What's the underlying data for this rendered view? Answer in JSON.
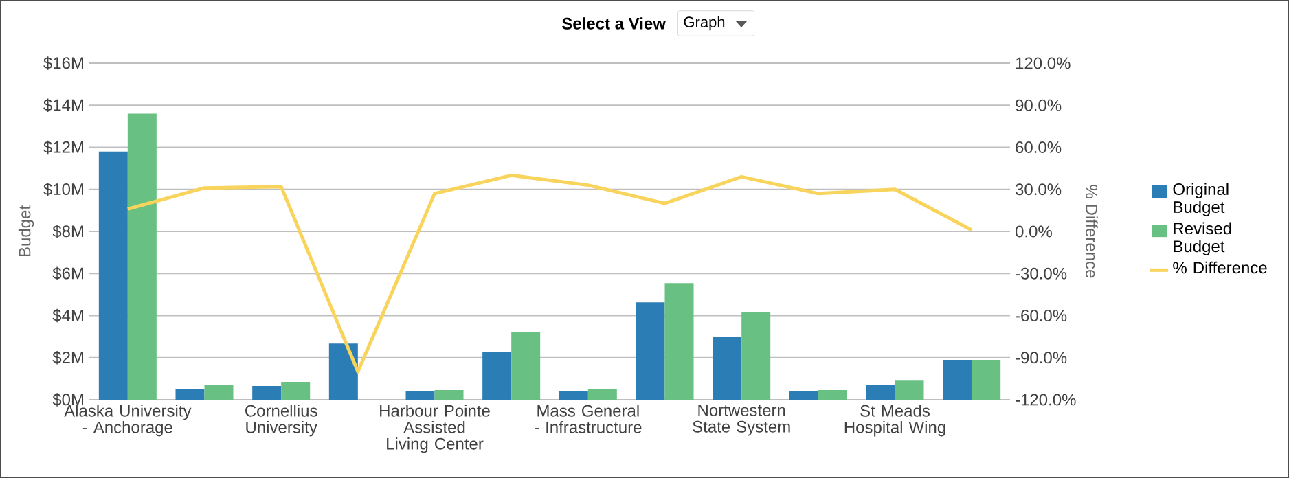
{
  "chart_data": {
    "type": "bar",
    "annotations": [
      "Select a View",
      "Graph"
    ],
    "ylabel": "Budget",
    "y2label": "% Difference",
    "categories": [
      "Alaska University - Anchorage",
      null,
      "Cornellius University",
      null,
      "Harbour Pointe Assisted Living Center",
      null,
      "Mass General - Infrastructure",
      null,
      "Nortwestern State System",
      null,
      "St Meads Hospital Wing",
      null
    ],
    "series": [
      {
        "name": "Original Budget",
        "color": "#2a7db5",
        "values": [
          11.8,
          0.52,
          0.65,
          2.67,
          0.39,
          2.28,
          0.39,
          4.63,
          3.0,
          0.39,
          0.72,
          1.89
        ]
      },
      {
        "name": "Revised Budget",
        "color": "#68c182",
        "values": [
          13.6,
          0.72,
          0.85,
          0,
          0.46,
          3.2,
          0.52,
          5.54,
          4.17,
          0.46,
          0.91,
          1.89
        ]
      },
      {
        "name": "% Difference",
        "type": "line",
        "axis": "y2",
        "color": "#f9d45c",
        "values": [
          16,
          31,
          32,
          -100,
          27,
          40,
          33,
          20,
          39,
          27,
          30,
          1
        ]
      }
    ],
    "ylim": [
      0,
      16
    ],
    "yticks": [
      {
        "value": 0,
        "label": "$0M"
      },
      {
        "value": 2,
        "label": "$2M"
      },
      {
        "value": 4,
        "label": "$4M"
      },
      {
        "value": 6,
        "label": "$6M"
      },
      {
        "value": 8,
        "label": "$8M"
      },
      {
        "value": 10,
        "label": "$10M"
      },
      {
        "value": 12,
        "label": "$12M"
      },
      {
        "value": 14,
        "label": "$14M"
      },
      {
        "value": 16,
        "label": "$16M"
      }
    ],
    "y2lim": [
      -120,
      120
    ],
    "y2ticks": [
      {
        "value": -120,
        "label": "-120.0%"
      },
      {
        "value": -90,
        "label": "-90.0%"
      },
      {
        "value": -60,
        "label": "-60.0%"
      },
      {
        "value": -30,
        "label": "-30.0%"
      },
      {
        "value": 0,
        "label": "0.0%"
      },
      {
        "value": 30,
        "label": "30.0%"
      },
      {
        "value": 60,
        "label": "60.0%"
      },
      {
        "value": 90,
        "label": "90.0%"
      },
      {
        "value": 120,
        "label": "120.0%"
      }
    ],
    "grid": "y",
    "legend": "right"
  }
}
